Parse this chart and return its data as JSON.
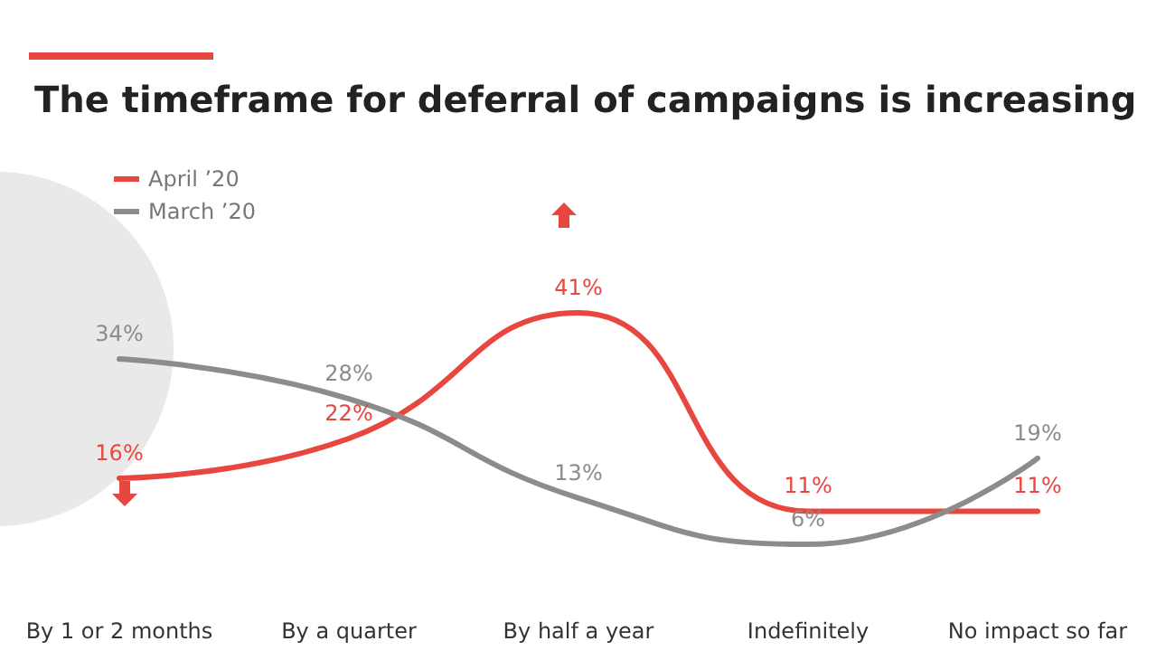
{
  "chart_data": {
    "type": "line",
    "title": "The timeframe for deferral of campaigns is increasing",
    "categories": [
      "By 1 or 2 months",
      "By a quarter",
      "By half a year",
      "Indefinitely",
      "No impact so far"
    ],
    "series": [
      {
        "name": "April ’20",
        "color": "#e8473f",
        "values": [
          16,
          22,
          41,
          11,
          11
        ],
        "value_labels": [
          "16%",
          "22%",
          "41%",
          "11%",
          "11%"
        ]
      },
      {
        "name": "March ’20",
        "color": "#8c8c8c",
        "values": [
          34,
          28,
          13,
          6,
          19
        ],
        "value_labels": [
          "34%",
          "28%",
          "13%",
          "6%",
          "19%"
        ]
      }
    ],
    "legend": "top left",
    "grid": false,
    "marker": "none",
    "line_style": "solid"
  }
}
